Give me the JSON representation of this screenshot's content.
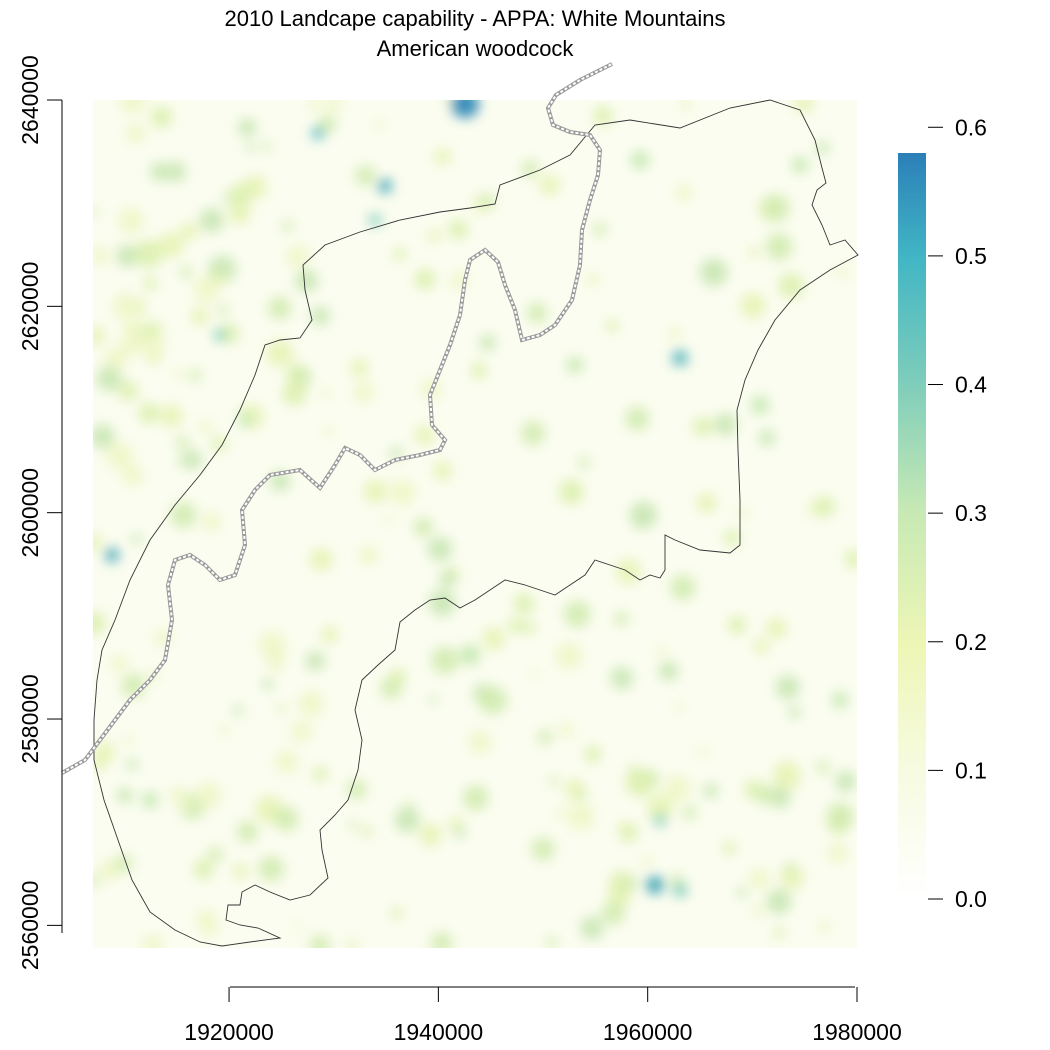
{
  "title": {
    "line1": "2010 Landcape capability - APPA: White Mountains",
    "line2": "American woodcock"
  },
  "map": {
    "x_ticks": [
      "1920000",
      "1940000",
      "1960000",
      "1980000"
    ],
    "y_ticks": [
      "2560000",
      "2580000",
      "2600000",
      "2620000",
      "2640000"
    ],
    "x_range": [
      1907000,
      1980000
    ],
    "y_range": [
      2558000,
      2640000
    ],
    "layers": [
      "capability-raster",
      "appa-boundary-polygon",
      "appalachian-trail-dashed"
    ]
  },
  "legend": {
    "ticks": [
      "0.0",
      "0.1",
      "0.2",
      "0.3",
      "0.4",
      "0.5",
      "0.6"
    ],
    "range": [
      0.0,
      0.58
    ],
    "colors": [
      "#ffffff",
      "#f7fbe1",
      "#eef6b6",
      "#c7e9b4",
      "#7fcdbb",
      "#41b6c4",
      "#2c7fb8"
    ]
  }
}
